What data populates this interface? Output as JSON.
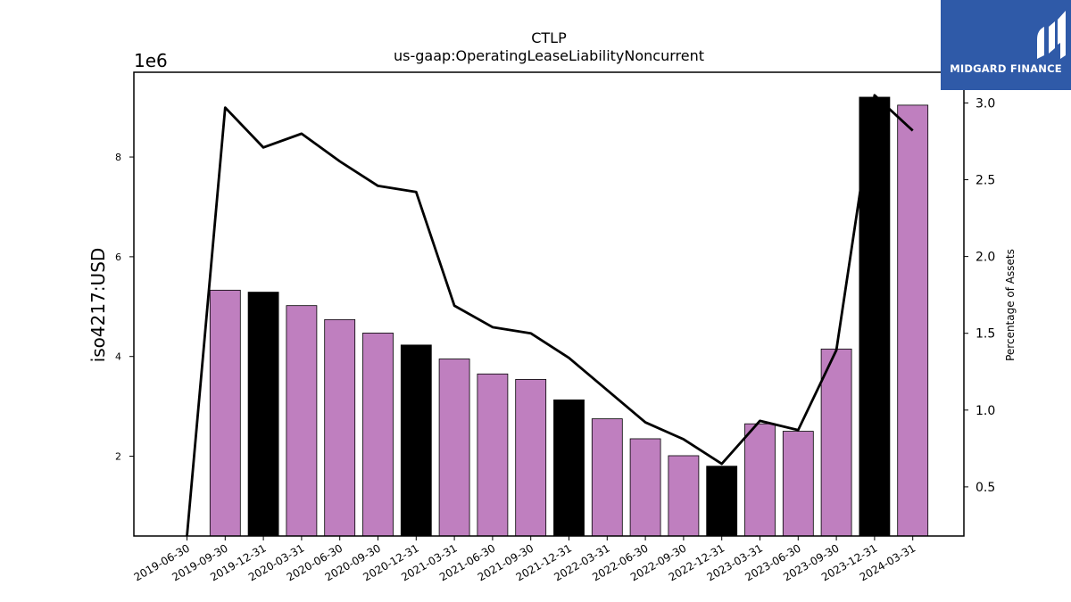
{
  "chart_data": {
    "type": "bar",
    "title": "CTLP",
    "subtitle": "us-gaap:OperatingLeaseLiabilityNoncurrent",
    "ylabel": "iso4217:USD",
    "y2label": "Percentage of Assets",
    "y_scale_label": "1e6",
    "categories": [
      "2019-06-30",
      "2019-09-30",
      "2019-12-31",
      "2020-03-31",
      "2020-06-30",
      "2020-09-30",
      "2020-12-31",
      "2021-03-31",
      "2021-06-30",
      "2021-09-30",
      "2021-12-31",
      "2022-03-31",
      "2022-06-30",
      "2022-09-30",
      "2022-12-31",
      "2023-03-31",
      "2023-06-30",
      "2023-09-30",
      "2023-12-31",
      "2024-03-31"
    ],
    "series": [
      {
        "name": "",
        "kind": "bar",
        "axis": "left",
        "values": [
          null,
          5330000,
          5290000,
          5020000,
          4740000,
          4470000,
          4230000,
          3950000,
          3650000,
          3540000,
          3130000,
          2750000,
          2350000,
          2010000,
          1800000,
          2650000,
          2500000,
          4150000,
          9200000,
          9040000
        ]
      },
      {
        "name": "",
        "kind": "line",
        "axis": "right",
        "values": [
          0.18,
          2.97,
          2.71,
          2.8,
          2.62,
          2.46,
          2.42,
          1.68,
          1.54,
          1.5,
          1.34,
          1.13,
          0.92,
          0.81,
          0.65,
          0.93,
          0.87,
          1.39,
          3.05,
          2.82
        ]
      }
    ],
    "bar_colors": [
      "#bf7fbf",
      "#bf7fbf",
      "#000000",
      "#bf7fbf",
      "#bf7fbf",
      "#bf7fbf",
      "#000000",
      "#bf7fbf",
      "#bf7fbf",
      "#bf7fbf",
      "#000000",
      "#bf7fbf",
      "#bf7fbf",
      "#bf7fbf",
      "#000000",
      "#bf7fbf",
      "#bf7fbf",
      "#bf7fbf",
      "#000000",
      "#bf7fbf"
    ],
    "line_color": "#000000",
    "ylim": [
      400000,
      9700000
    ],
    "y_ticks": [
      2000000,
      4000000,
      6000000,
      8000000
    ],
    "y_tick_labels": [
      "2",
      "4",
      "6",
      "8"
    ],
    "y2lim": [
      0.18,
      3.2
    ],
    "y2_ticks": [
      0.5,
      1.0,
      1.5,
      2.0,
      2.5,
      3.0
    ],
    "y2_tick_labels": [
      "0.5",
      "1.0",
      "1.5",
      "2.0",
      "2.5",
      "3.0"
    ],
    "grid": false,
    "legend": "none"
  },
  "logo": {
    "text": "MIDGARD FINANCE",
    "color": "#2f5aa8"
  }
}
